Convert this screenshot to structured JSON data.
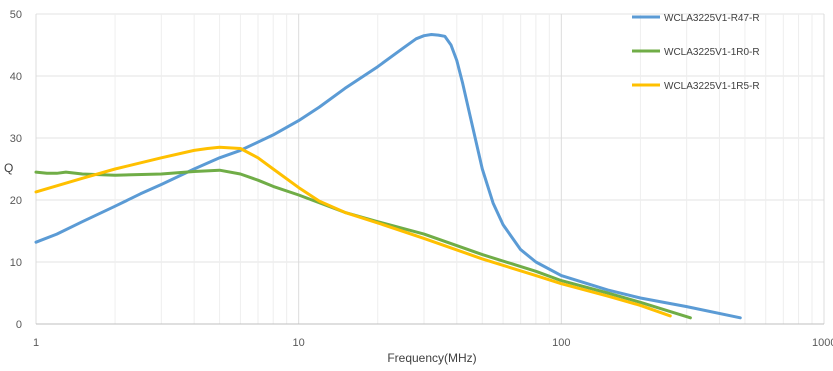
{
  "chart_data": {
    "type": "line",
    "xlabel": "Frequency(MHz)",
    "ylabel": "Q",
    "xscale": "log",
    "xlim": [
      1,
      1000
    ],
    "ylim": [
      0,
      50
    ],
    "xticks": [
      1,
      10,
      100,
      1000
    ],
    "xtick_labels": [
      "1",
      "10",
      "100",
      "1000"
    ],
    "yticks": [
      0,
      10,
      20,
      30,
      40,
      50
    ],
    "ytick_labels": [
      "0",
      "10",
      "20",
      "30",
      "40",
      "50"
    ],
    "grid": true,
    "legend_position": "top-right",
    "series": [
      {
        "name": "WCLA3225V1-R47-R",
        "color": "#5B9BD5",
        "x": [
          1,
          1.2,
          1.5,
          2,
          2.5,
          3,
          4,
          5,
          6,
          8,
          10,
          12,
          15,
          20,
          25,
          28,
          30,
          32,
          34,
          36,
          38,
          40,
          42,
          45,
          50,
          55,
          60,
          70,
          80,
          100,
          150,
          200,
          300,
          480
        ],
        "y": [
          13.2,
          14.5,
          16.5,
          19.0,
          21.0,
          22.5,
          25.0,
          26.8,
          28.0,
          30.5,
          32.8,
          35.0,
          38.0,
          41.5,
          44.5,
          46.0,
          46.5,
          46.7,
          46.6,
          46.4,
          45.0,
          42.5,
          39.0,
          33.5,
          25.0,
          19.5,
          16.0,
          12.0,
          10.0,
          7.8,
          5.5,
          4.2,
          2.8,
          1.0
        ]
      },
      {
        "name": "WCLA3225V1-1R0-R",
        "color": "#70AD47",
        "x": [
          1,
          1.1,
          1.2,
          1.3,
          1.5,
          2,
          3,
          4,
          5,
          6,
          7,
          8,
          10,
          15,
          20,
          30,
          50,
          80,
          100,
          150,
          200,
          310
        ],
        "y": [
          24.5,
          24.3,
          24.3,
          24.5,
          24.2,
          24.0,
          24.2,
          24.6,
          24.8,
          24.2,
          23.2,
          22.2,
          20.8,
          18.0,
          16.5,
          14.5,
          11.2,
          8.5,
          7.0,
          5.0,
          3.5,
          1.0
        ]
      },
      {
        "name": "WCLA3225V1-1R5-R",
        "color": "#FFC000",
        "x": [
          1,
          1.5,
          2,
          3,
          4,
          4.5,
          5,
          6,
          7,
          8,
          10,
          12,
          15,
          20,
          30,
          50,
          80,
          100,
          150,
          200,
          260
        ],
        "y": [
          21.3,
          23.5,
          25.0,
          26.8,
          28.0,
          28.3,
          28.5,
          28.3,
          26.8,
          25.0,
          22.0,
          19.8,
          18.0,
          16.3,
          13.8,
          10.5,
          7.8,
          6.5,
          4.5,
          3.0,
          1.3
        ]
      }
    ]
  }
}
